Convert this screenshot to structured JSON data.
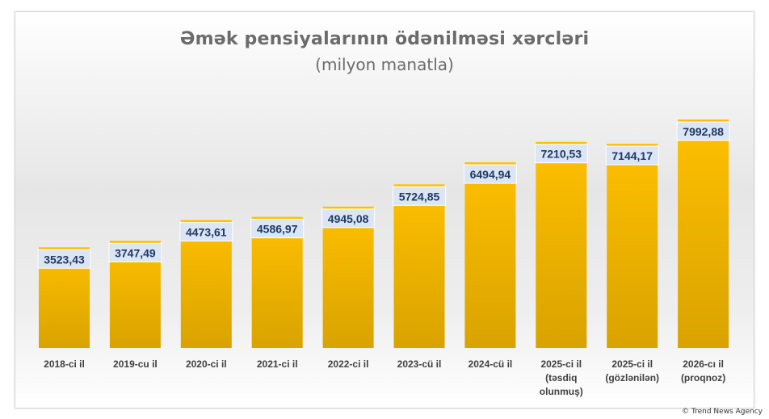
{
  "chart_data": {
    "type": "bar",
    "title": "Əmək pensiyalarının ödənilməsi xərcləri",
    "subtitle": "(milyon manatla)",
    "categories": [
      [
        "2018-ci il"
      ],
      [
        "2019-cu il"
      ],
      [
        "2020-ci il"
      ],
      [
        "2021-ci il"
      ],
      [
        "2022-ci il"
      ],
      [
        "2023-cü il"
      ],
      [
        "2024-cü il"
      ],
      [
        "2025-ci il",
        "(təsdiq",
        "olunmuş)"
      ],
      [
        "2025-ci il",
        "(gözlənilən)"
      ],
      [
        "2026-cı il",
        "(proqnoz)"
      ]
    ],
    "values": [
      3523.43,
      3747.49,
      4473.61,
      4586.97,
      4945.08,
      5724.85,
      6494.94,
      7210.53,
      7144.17,
      7992.88
    ],
    "value_labels": [
      "3523,43",
      "3747,49",
      "4473,61",
      "4586,97",
      "4945,08",
      "5724,85",
      "6494,94",
      "7210,53",
      "7144,17",
      "7992,88"
    ],
    "ylim": [
      0,
      10000
    ],
    "grid": false,
    "legend": "none",
    "colors": {
      "bar_top": "#ffc000",
      "bar_bottom": "#d9a300",
      "label_bg": "#dbe5f4",
      "label_text": "#1f3864",
      "tick_text": "#404040"
    }
  },
  "footer": {
    "credit": "© Trend News Agency"
  }
}
